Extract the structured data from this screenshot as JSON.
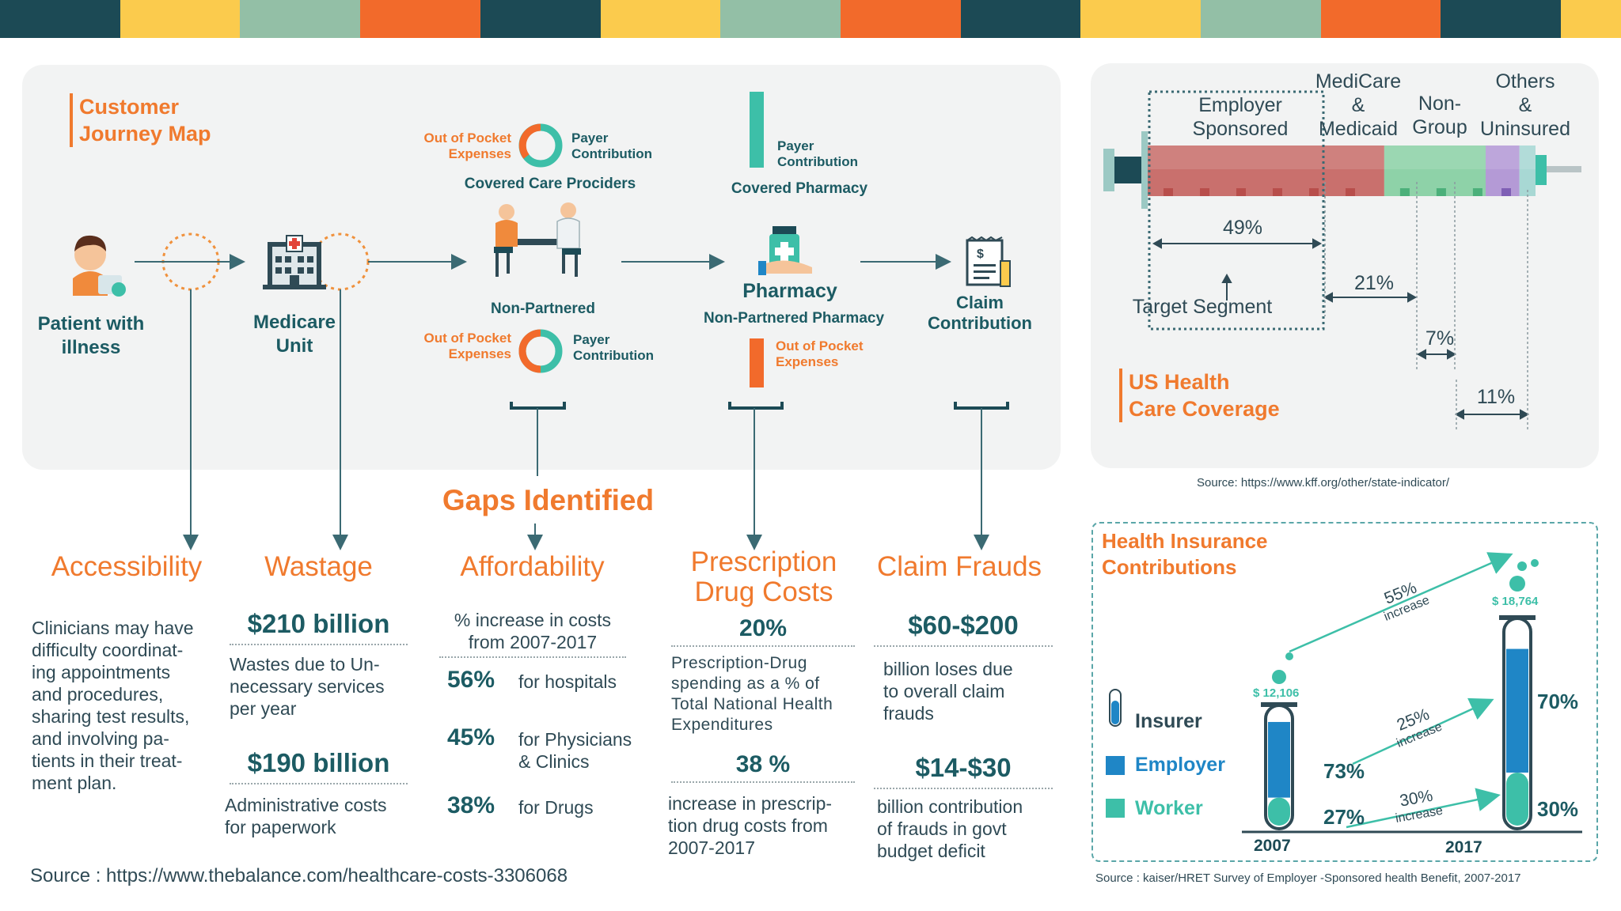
{
  "colors": {
    "dark_teal": "#1c4a55",
    "yellow": "#fbcb4d",
    "sage": "#93bfa6",
    "orange": "#f26a2b",
    "accent_orange": "#f07a2e",
    "teal": "#3dbfa8",
    "blue": "#1f86c6",
    "employer_red": "#c9706d",
    "medicare_green": "#8ed2a8",
    "nongroup_purple": "#b49ad6",
    "others_teal": "#a8d8d4"
  },
  "journey": {
    "title_line1": "Customer",
    "title_line2": "Journey Map",
    "patient": {
      "line1": "Patient with",
      "line2": "illness",
      "icon": "patient-icon"
    },
    "medicare": {
      "line1": "Medicare",
      "line2": "Unit",
      "icon": "hospital-icon"
    },
    "covered_care": {
      "left_line1": "Out of Pocket",
      "left_line2": "Expenses",
      "right_line1": "Payer",
      "right_line2": "Contribution",
      "label": "Covered Care Prociders"
    },
    "non_partnered": {
      "label": "Non-Partnered",
      "left_line1": "Out of Pocket",
      "left_line2": "Expenses",
      "right_line1": "Payer",
      "right_line2": "Contribution",
      "icon": "doctor-consultation-icon"
    },
    "covered_pharmacy": {
      "bar_line1": "Payer",
      "bar_line2": "Contribution",
      "label": "Covered Pharmacy"
    },
    "pharmacy": {
      "label": "Pharmacy",
      "sub_label": "Non-Partnered Pharmacy",
      "bar_line1": "Out of Pocket",
      "bar_line2": "Expenses",
      "icon": "medicine-bottle-icon"
    },
    "claim": {
      "line1": "Claim",
      "line2": "Contribution",
      "icon": "claim-document-icon"
    }
  },
  "gaps": {
    "title": "Gaps Identified",
    "accessibility": {
      "title": "Accessibility",
      "text": [
        "Clinicians may have",
        "difficulty coordinat-",
        "ing appointments",
        "and procedures,",
        "sharing test results,",
        "and involving pa-",
        "tients in their treat-",
        "ment plan."
      ]
    },
    "wastage": {
      "title": "Wastage",
      "stat1": "$210 billion",
      "text1": [
        "Wastes due to Un-",
        "necessary services",
        "per year"
      ],
      "stat2": "$190 billion",
      "text2": [
        "Administrative costs",
        "for paperwork"
      ]
    },
    "affordability": {
      "title": "Affordability",
      "intro": [
        "% increase in costs",
        "from 2007-2017"
      ],
      "rows": [
        {
          "pct": "56%",
          "label1": "for hospitals",
          "label2": ""
        },
        {
          "pct": "45%",
          "label1": "for Physicians",
          "label2": "& Clinics"
        },
        {
          "pct": "38%",
          "label1": "for Drugs",
          "label2": ""
        }
      ]
    },
    "prescription": {
      "title_line1": "Prescription",
      "title_line2": "Drug Costs",
      "stat1": "20%",
      "text1": [
        "Prescription-Drug",
        "spending as a % of",
        "Total National Health",
        "Expenditures"
      ],
      "stat2": "38 %",
      "text2": [
        "increase in prescrip-",
        "tion drug costs from",
        "2007-2017"
      ]
    },
    "frauds": {
      "title": "Claim Frauds",
      "stat1": "$60-$200",
      "text1": [
        "billion loses due",
        "to overall claim",
        "frauds"
      ],
      "stat2": "$14-$30",
      "text2": [
        "billion contribution",
        "of frauds in govt",
        "budget deficit"
      ]
    },
    "source": "Source : https://www.thebalance.com/healthcare-costs-3306068"
  },
  "coverage": {
    "title_line1": "US Health",
    "title_line2": "Care Coverage",
    "segments": [
      {
        "name_lines": [
          "Employer",
          "Sponsored"
        ],
        "pct": "49%",
        "value": 49
      },
      {
        "name_lines": [
          "MediCare",
          "&",
          "Medicaid"
        ],
        "pct": "21%",
        "value": 21
      },
      {
        "name_lines": [
          "Non-",
          "Group"
        ],
        "pct": "7%",
        "value": 7
      },
      {
        "name_lines": [
          "Others",
          "&",
          "Uninsured"
        ],
        "pct": "11%",
        "value": 11
      }
    ],
    "target_label": "Target Segment",
    "source": "Source: https://www.kff.org/other/state-indicator/"
  },
  "contributions": {
    "title_line1": "Health Insurance",
    "title_line2": "Contributions",
    "legend": [
      {
        "label": "Insurer",
        "icon": "test-tube-icon"
      },
      {
        "label": "Employer",
        "icon": "blue-square-icon"
      },
      {
        "label": "Worker",
        "icon": "teal-square-icon"
      }
    ],
    "years": [
      "2007",
      "2017"
    ],
    "totals": [
      "$ 12,106",
      "$ 18,764"
    ],
    "employer_shares": [
      "73%",
      "70%"
    ],
    "worker_shares": [
      "27%",
      "30%"
    ],
    "employer_share_values": [
      73,
      70
    ],
    "worker_share_values": [
      27,
      30
    ],
    "increases": [
      {
        "pct": "55%",
        "label": "increase"
      },
      {
        "pct": "25%",
        "label": "increase"
      },
      {
        "pct": "30%",
        "label": "increase"
      }
    ],
    "source": "Source : kaiser/HRET Survey of Employer -Sponsored health Benefit, 2007-2017"
  }
}
